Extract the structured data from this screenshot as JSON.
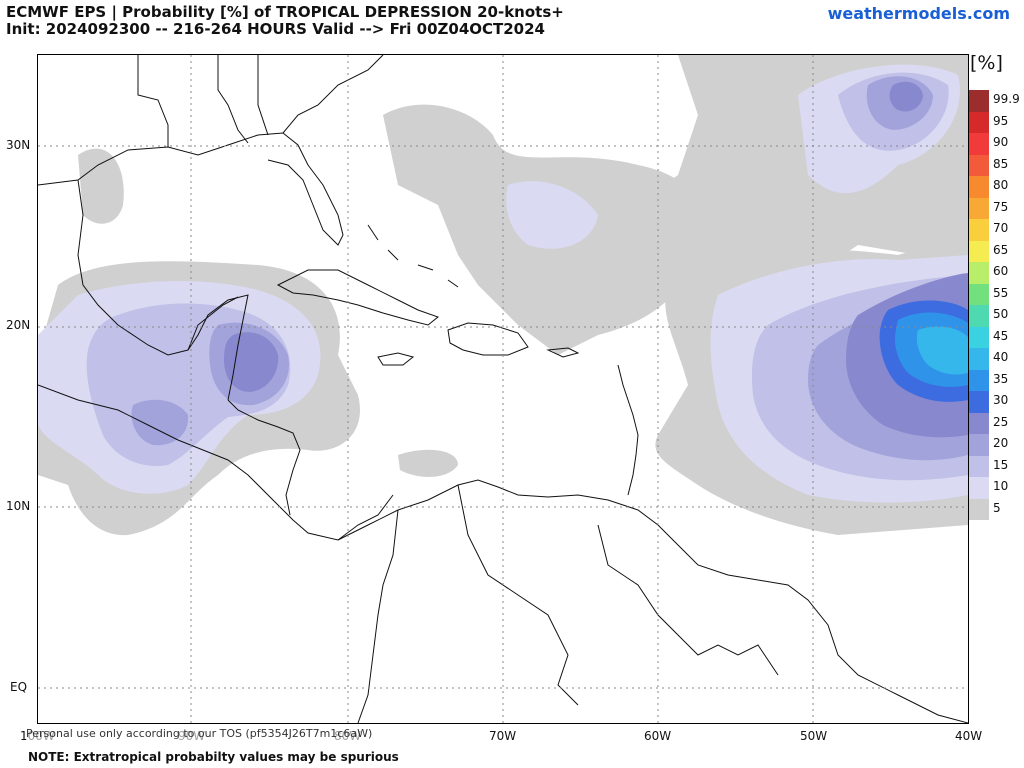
{
  "header": {
    "title_line1": "ECMWF EPS | Probability [%] of TROPICAL DEPRESSION 20-knots+",
    "title_line2": "Init: 2024092300 -- 216-264 HOURS Valid --> Fri 00Z04OCT2024",
    "brand": "weathermodels.com"
  },
  "axes": {
    "lat_labels": [
      "30N",
      "20N",
      "10N",
      "EQ"
    ],
    "lon_labels": [
      "100W",
      "90W",
      "80W",
      "70W",
      "60W",
      "50W",
      "40W"
    ]
  },
  "legend": {
    "title": "[%]",
    "levels": [
      "99.9",
      "95",
      "90",
      "85",
      "80",
      "75",
      "70",
      "65",
      "60",
      "55",
      "50",
      "45",
      "40",
      "35",
      "30",
      "25",
      "20",
      "15",
      "10",
      "5"
    ],
    "colors": [
      "#9b2d2d",
      "#d62a2a",
      "#f23a3a",
      "#f25a3a",
      "#f7892f",
      "#f8a935",
      "#f9cf3e",
      "#f5ec52",
      "#b9ee6a",
      "#72e07c",
      "#4fd9b0",
      "#3ad2e0",
      "#35b7ec",
      "#2f93ea",
      "#3d6be0",
      "#8888cf",
      "#a3a3dc",
      "#c0c0e8",
      "#dadaf2",
      "#cfcfcf"
    ]
  },
  "footer": {
    "disclaimer": "Personal use only according to our TOS (pf5354J26T7m1c6aW)",
    "note": "NOTE: Extratropical probabilty values may be spurious"
  }
}
